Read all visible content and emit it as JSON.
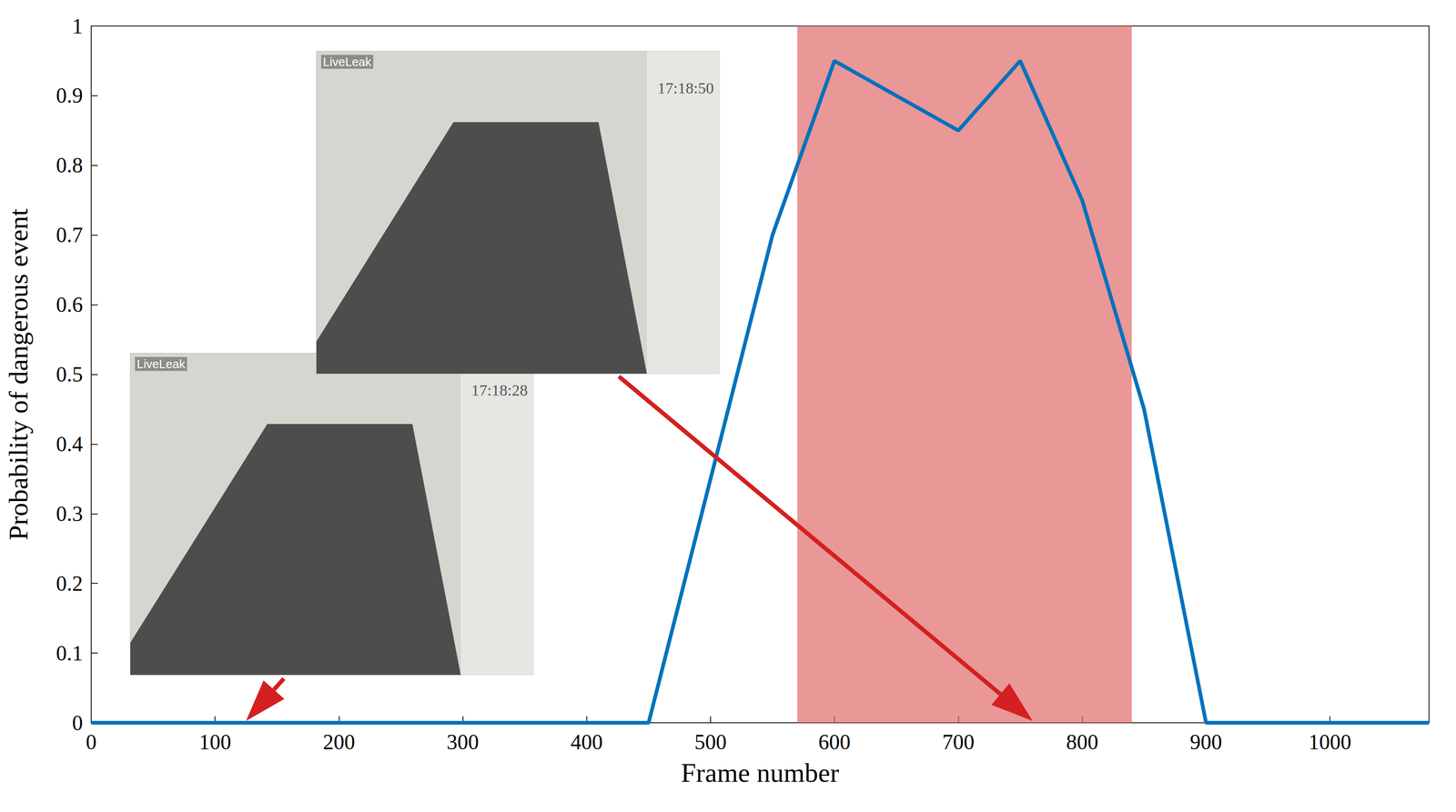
{
  "chart_data": {
    "type": "line",
    "x_label": "Frame number",
    "y_label": "Probability of dangerous event",
    "x": [
      0,
      450,
      550,
      600,
      700,
      750,
      800,
      850,
      900,
      1080
    ],
    "values": [
      0,
      0,
      0.7,
      0.95,
      0.85,
      0.95,
      0.75,
      0.45,
      0,
      0
    ],
    "color": "#0072bd",
    "xlim": [
      0,
      1080
    ],
    "xticks": [
      0,
      100,
      200,
      300,
      400,
      500,
      600,
      700,
      800,
      900,
      1000
    ],
    "ylim": [
      0,
      1
    ],
    "yticks": [
      0,
      0.1,
      0.2,
      0.3,
      0.4,
      0.5,
      0.6,
      0.7,
      0.8,
      0.9,
      1
    ],
    "grid": false,
    "highlight": {
      "range": [
        570,
        840
      ],
      "color": "#e06666"
    },
    "annotations": [
      {
        "text": "17:18:50",
        "watermark": "LiveLeak",
        "x": 760,
        "y": 0
      },
      {
        "text": "17:18:28",
        "watermark": "LiveLeak",
        "x": 125,
        "y": 0
      }
    ]
  }
}
